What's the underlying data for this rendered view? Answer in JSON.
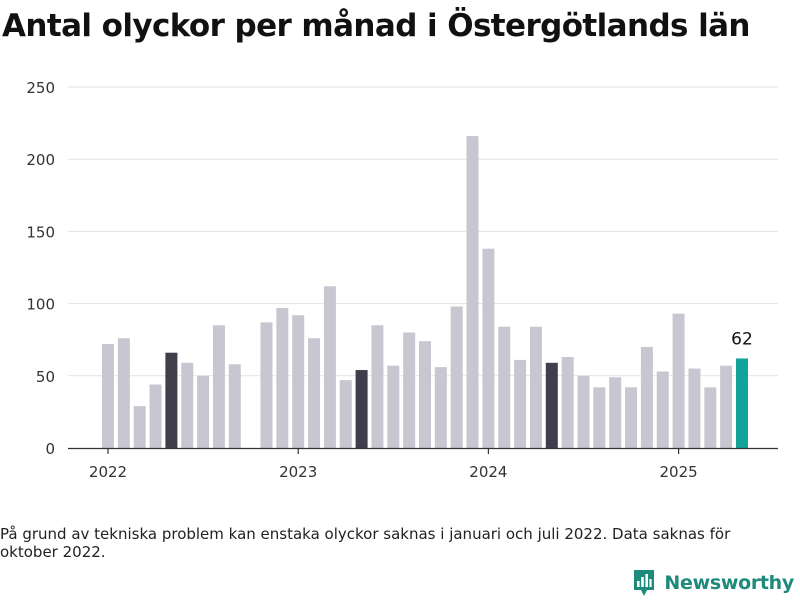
{
  "title": "Antal olyckor per månad i Östergötlands län",
  "footnote": "På grund av tekniska problem kan enstaka olyckor saknas i januari och juli 2022. Data saknas för oktober 2022.",
  "brand": {
    "name": "Newsworthy",
    "icon": "bar-chart-logo-icon"
  },
  "colors": {
    "bar_default": "#c8c7d1",
    "bar_highlight": "#3f3e4a",
    "bar_latest": "#12a39a",
    "grid": "#e2e2e2",
    "axis": "#333333",
    "brand": "#1e8a7b"
  },
  "chart_data": {
    "type": "bar",
    "title": "Antal olyckor per månad i Östergötlands län",
    "xlabel": "",
    "ylabel": "",
    "ylim": [
      0,
      250
    ],
    "y_ticks": [
      "0",
      "50",
      "100",
      "150",
      "200",
      "250"
    ],
    "x_ticks": [
      {
        "label": "2022",
        "at": "2022-01"
      },
      {
        "label": "2023",
        "at": "2023-01"
      },
      {
        "label": "2024",
        "at": "2024-01"
      },
      {
        "label": "2025",
        "at": "2025-01"
      }
    ],
    "grid": true,
    "categories": [
      "2022-01",
      "2022-02",
      "2022-03",
      "2022-04",
      "2022-05",
      "2022-06",
      "2022-07",
      "2022-08",
      "2022-09",
      "2022-10",
      "2022-11",
      "2022-12",
      "2023-01",
      "2023-02",
      "2023-03",
      "2023-04",
      "2023-05",
      "2023-06",
      "2023-07",
      "2023-08",
      "2023-09",
      "2023-10",
      "2023-11",
      "2023-12",
      "2024-01",
      "2024-02",
      "2024-03",
      "2024-04",
      "2024-05",
      "2024-06",
      "2024-07",
      "2024-08",
      "2024-09",
      "2024-10",
      "2024-11",
      "2024-12",
      "2025-01",
      "2025-02",
      "2025-03",
      "2025-04",
      "2025-05"
    ],
    "values": [
      72,
      76,
      29,
      44,
      66,
      59,
      50,
      85,
      58,
      null,
      87,
      97,
      92,
      76,
      112,
      47,
      54,
      85,
      57,
      80,
      74,
      56,
      98,
      216,
      138,
      84,
      61,
      84,
      59,
      63,
      50,
      42,
      49,
      42,
      70,
      53,
      93,
      55,
      42,
      57,
      62
    ],
    "highlighted": [
      "2022-05",
      "2023-05",
      "2024-05"
    ],
    "latest": "2025-05",
    "data_labels": [
      {
        "category": "2025-05",
        "text": "62"
      }
    ]
  }
}
